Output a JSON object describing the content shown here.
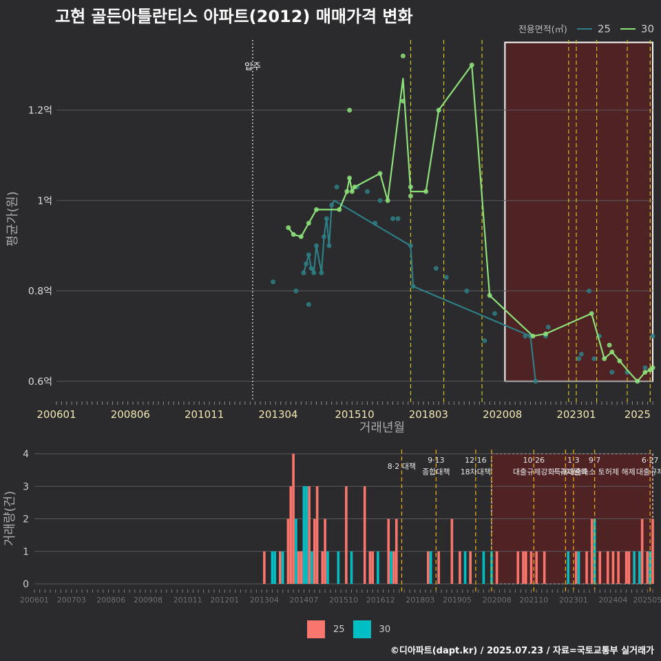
{
  "title": "고현 골든아틀란티스 아파트(2012) 매매가격 변화",
  "legend": {
    "title": "전용면적(㎡)",
    "items": [
      {
        "label": "25",
        "color": "#2e7f85"
      },
      {
        "label": "30",
        "color": "#8ee27a"
      }
    ]
  },
  "bar_legend": {
    "items": [
      {
        "label": "25",
        "color": "#f8766d"
      },
      {
        "label": "30",
        "color": "#00bfc4"
      }
    ]
  },
  "credit": "©디아파트(dapt.kr) / 2025.07.23 / 자료=국토교통부 실거래가",
  "chart_data": [
    {
      "type": "line",
      "xlabel": "거래년월",
      "ylabel": "평균가(원)",
      "x_ticks": [
        "200601",
        "200806",
        "201011",
        "201304",
        "201510",
        "201803",
        "202008",
        "202301",
        "2025"
      ],
      "y_ticks": [
        0.6,
        0.8,
        1.0,
        1.2
      ],
      "y_tick_labels": [
        "0.6억",
        "0.8억",
        "1억",
        "1.2억"
      ],
      "xlim": [
        "2006-01",
        "2025-07"
      ],
      "ylim": [
        0.56,
        1.36
      ],
      "grid": true,
      "legend_position": "top-right",
      "annotations": [
        {
          "x": "2012-06",
          "label": "입주"
        }
      ],
      "event_lines": [
        "2017-08",
        "2018-09",
        "2019-12",
        "2022-10",
        "2023-01",
        "2023-09",
        "2024-09",
        "2025-06"
      ],
      "highlight_region": {
        "x_from": "2020-09",
        "x_to": "2025-07",
        "y_from": 0.6,
        "y_to": 1.35
      },
      "series": [
        {
          "name": "25",
          "line": [
            {
              "x": "2014-02",
              "y": 0.84
            },
            {
              "x": "2014-03",
              "y": 0.86
            },
            {
              "x": "2014-04",
              "y": 0.88
            },
            {
              "x": "2014-05",
              "y": 0.85
            },
            {
              "x": "2014-06",
              "y": 0.84
            },
            {
              "x": "2014-07",
              "y": 0.9
            },
            {
              "x": "2014-09",
              "y": 0.84
            },
            {
              "x": "2014-10",
              "y": 0.92
            },
            {
              "x": "2014-11",
              "y": 0.96
            },
            {
              "x": "2014-12",
              "y": 0.9
            },
            {
              "x": "2015-01",
              "y": 0.99
            },
            {
              "x": "2015-02",
              "y": 1.0
            },
            {
              "x": "2017-08",
              "y": 0.9
            },
            {
              "x": "2017-09",
              "y": 0.81
            },
            {
              "x": "2021-07",
              "y": 0.7
            },
            {
              "x": "2021-09",
              "y": 0.6
            }
          ],
          "points": [
            {
              "x": "2013-02",
              "y": 0.82
            },
            {
              "x": "2013-11",
              "y": 0.8
            },
            {
              "x": "2014-02",
              "y": 0.84
            },
            {
              "x": "2014-03",
              "y": 0.86
            },
            {
              "x": "2014-04",
              "y": 0.88
            },
            {
              "x": "2014-04",
              "y": 0.77
            },
            {
              "x": "2014-05",
              "y": 0.85
            },
            {
              "x": "2014-06",
              "y": 0.84
            },
            {
              "x": "2014-07",
              "y": 0.9
            },
            {
              "x": "2014-09",
              "y": 0.84
            },
            {
              "x": "2014-10",
              "y": 0.92
            },
            {
              "x": "2014-11",
              "y": 0.96
            },
            {
              "x": "2014-12",
              "y": 0.9
            },
            {
              "x": "2015-01",
              "y": 0.99
            },
            {
              "x": "2015-03",
              "y": 1.03
            },
            {
              "x": "2015-11",
              "y": 1.03
            },
            {
              "x": "2016-03",
              "y": 1.02
            },
            {
              "x": "2016-06",
              "y": 0.95
            },
            {
              "x": "2016-08",
              "y": 1.0
            },
            {
              "x": "2017-01",
              "y": 0.96
            },
            {
              "x": "2017-03",
              "y": 0.96
            },
            {
              "x": "2017-08",
              "y": 0.9
            },
            {
              "x": "2017-09",
              "y": 0.81
            },
            {
              "x": "2018-06",
              "y": 0.85
            },
            {
              "x": "2018-10",
              "y": 0.83
            },
            {
              "x": "2019-06",
              "y": 0.8
            },
            {
              "x": "2020-01",
              "y": 0.69
            },
            {
              "x": "2020-05",
              "y": 0.75
            },
            {
              "x": "2021-05",
              "y": 0.7
            },
            {
              "x": "2021-07",
              "y": 0.7
            },
            {
              "x": "2021-09",
              "y": 0.6
            },
            {
              "x": "2022-01",
              "y": 0.7
            },
            {
              "x": "2022-02",
              "y": 0.72
            },
            {
              "x": "2023-02",
              "y": 0.65
            },
            {
              "x": "2023-03",
              "y": 0.66
            },
            {
              "x": "2023-06",
              "y": 0.8
            },
            {
              "x": "2023-08",
              "y": 0.65
            },
            {
              "x": "2023-10",
              "y": 0.7
            },
            {
              "x": "2024-03",
              "y": 0.62
            },
            {
              "x": "2024-09",
              "y": 0.62
            },
            {
              "x": "2025-04",
              "y": 0.63
            },
            {
              "x": "2025-07",
              "y": 0.7
            }
          ]
        },
        {
          "name": "30",
          "line": [
            {
              "x": "2013-08",
              "y": 0.94
            },
            {
              "x": "2013-10",
              "y": 0.925
            },
            {
              "x": "2014-01",
              "y": 0.92
            },
            {
              "x": "2014-04",
              "y": 0.95
            },
            {
              "x": "2014-07",
              "y": 0.98
            },
            {
              "x": "2015-04",
              "y": 0.98
            },
            {
              "x": "2015-07",
              "y": 1.02
            },
            {
              "x": "2015-08",
              "y": 1.05
            },
            {
              "x": "2015-09",
              "y": 1.02
            },
            {
              "x": "2015-10",
              "y": 1.03
            },
            {
              "x": "2016-08",
              "y": 1.06
            },
            {
              "x": "2016-11",
              "y": 1.0
            },
            {
              "x": "2017-05",
              "y": 1.27
            },
            {
              "x": "2017-08",
              "y": 1.02
            },
            {
              "x": "2018-02",
              "y": 1.02
            },
            {
              "x": "2018-07",
              "y": 1.2
            },
            {
              "x": "2019-08",
              "y": 1.3
            },
            {
              "x": "2020-03",
              "y": 0.79
            },
            {
              "x": "2021-08",
              "y": 0.7
            },
            {
              "x": "2022-01",
              "y": 0.705
            },
            {
              "x": "2023-07",
              "y": 0.75
            },
            {
              "x": "2023-12",
              "y": 0.65
            },
            {
              "x": "2024-03",
              "y": 0.665
            },
            {
              "x": "2024-06",
              "y": 0.645
            },
            {
              "x": "2024-09",
              "y": 0.625
            },
            {
              "x": "2025-01",
              "y": 0.6
            },
            {
              "x": "2025-04",
              "y": 0.62
            },
            {
              "x": "2025-06",
              "y": 0.625
            },
            {
              "x": "2025-07",
              "y": 0.63
            }
          ],
          "points": [
            {
              "x": "2013-08",
              "y": 0.94
            },
            {
              "x": "2013-10",
              "y": 0.925
            },
            {
              "x": "2014-01",
              "y": 0.92
            },
            {
              "x": "2014-04",
              "y": 0.95
            },
            {
              "x": "2014-07",
              "y": 0.98
            },
            {
              "x": "2015-04",
              "y": 0.98
            },
            {
              "x": "2015-07",
              "y": 1.02
            },
            {
              "x": "2015-08",
              "y": 1.05
            },
            {
              "x": "2015-08",
              "y": 1.2
            },
            {
              "x": "2015-09",
              "y": 1.02
            },
            {
              "x": "2015-10",
              "y": 1.03
            },
            {
              "x": "2016-08",
              "y": 1.06
            },
            {
              "x": "2016-11",
              "y": 1.0
            },
            {
              "x": "2017-05",
              "y": 1.32
            },
            {
              "x": "2017-05",
              "y": 1.22
            },
            {
              "x": "2017-08",
              "y": 1.03
            },
            {
              "x": "2017-08",
              "y": 1.01
            },
            {
              "x": "2018-02",
              "y": 1.02
            },
            {
              "x": "2018-07",
              "y": 1.2
            },
            {
              "x": "2019-08",
              "y": 1.3
            },
            {
              "x": "2020-03",
              "y": 0.79
            },
            {
              "x": "2021-08",
              "y": 0.7
            },
            {
              "x": "2022-01",
              "y": 0.705
            },
            {
              "x": "2023-07",
              "y": 0.75
            },
            {
              "x": "2023-12",
              "y": 0.65
            },
            {
              "x": "2024-02",
              "y": 0.68
            },
            {
              "x": "2024-03",
              "y": 0.665
            },
            {
              "x": "2024-06",
              "y": 0.645
            },
            {
              "x": "2025-01",
              "y": 0.6
            },
            {
              "x": "2025-04",
              "y": 0.62
            },
            {
              "x": "2025-06",
              "y": 0.625
            },
            {
              "x": "2025-07",
              "y": 0.63
            }
          ]
        }
      ]
    },
    {
      "type": "bar",
      "ylabel": "거래량(건)",
      "x_ticks": [
        "200601",
        "200703",
        "200806",
        "200908",
        "201011",
        "201201",
        "201304",
        "201407",
        "201510",
        "201612",
        "201803",
        "201905",
        "202008",
        "202110",
        "202301",
        "202404",
        "202505"
      ],
      "y_ticks": [
        0,
        1,
        2,
        3,
        4
      ],
      "ylim": [
        0,
        4
      ],
      "grid": true,
      "legend_position": "bottom",
      "event_markers": [
        {
          "x": "2017-08",
          "labels": [
            "8·2 대책"
          ]
        },
        {
          "x": "2018-09",
          "labels": [
            "9·13",
            "종합대책"
          ]
        },
        {
          "x": "2019-12",
          "labels": [
            "12·16",
            "18차대책"
          ]
        },
        {
          "x": "2020-06",
          "labels": []
        },
        {
          "x": "2021-10",
          "labels": [
            "10·26",
            "대출규제강화"
          ]
        },
        {
          "x": "2022-10",
          "labels": []
        },
        {
          "x": "2023-01",
          "labels": [
            "1·3",
            "규제완화"
          ]
        },
        {
          "x": "2023-09",
          "labels": [
            "9·7",
            "특례대출축소 토허제 해제"
          ]
        },
        {
          "x": "2025-06",
          "labels": [
            "6·27",
            "대출규제"
          ]
        }
      ],
      "highlight_region": {
        "x_from": "2020-06",
        "x_to": "2025-07"
      },
      "series": [
        {
          "name": "25",
          "bars": [
            {
              "x": "2013-04",
              "y": 1
            },
            {
              "x": "2013-10",
              "y": 1
            },
            {
              "x": "2014-01",
              "y": 2
            },
            {
              "x": "2014-02",
              "y": 3
            },
            {
              "x": "2014-03",
              "y": 4
            },
            {
              "x": "2014-04",
              "y": 1
            },
            {
              "x": "2014-05",
              "y": 1
            },
            {
              "x": "2014-06",
              "y": 1
            },
            {
              "x": "2014-07",
              "y": 2
            },
            {
              "x": "2014-09",
              "y": 3
            },
            {
              "x": "2014-11",
              "y": 2
            },
            {
              "x": "2014-12",
              "y": 3
            },
            {
              "x": "2015-02",
              "y": 1
            },
            {
              "x": "2015-03",
              "y": 2
            },
            {
              "x": "2015-11",
              "y": 3
            },
            {
              "x": "2016-06",
              "y": 3
            },
            {
              "x": "2016-08",
              "y": 1
            },
            {
              "x": "2016-09",
              "y": 1
            },
            {
              "x": "2017-03",
              "y": 2
            },
            {
              "x": "2017-05",
              "y": 1
            },
            {
              "x": "2017-06",
              "y": 2
            },
            {
              "x": "2018-06",
              "y": 1
            },
            {
              "x": "2018-10",
              "y": 1
            },
            {
              "x": "2019-03",
              "y": 2
            },
            {
              "x": "2019-06",
              "y": 1
            },
            {
              "x": "2019-10",
              "y": 1
            },
            {
              "x": "2020-08",
              "y": 1
            },
            {
              "x": "2021-04",
              "y": 1
            },
            {
              "x": "2021-06",
              "y": 1
            },
            {
              "x": "2021-07",
              "y": 1
            },
            {
              "x": "2021-09",
              "y": 1
            },
            {
              "x": "2021-11",
              "y": 1
            },
            {
              "x": "2022-02",
              "y": 1
            },
            {
              "x": "2023-02",
              "y": 1
            },
            {
              "x": "2023-06",
              "y": 1
            },
            {
              "x": "2023-08",
              "y": 2
            },
            {
              "x": "2023-11",
              "y": 1
            },
            {
              "x": "2024-02",
              "y": 1
            },
            {
              "x": "2024-04",
              "y": 1
            },
            {
              "x": "2024-06",
              "y": 1
            },
            {
              "x": "2024-09",
              "y": 1
            },
            {
              "x": "2024-10",
              "y": 1
            },
            {
              "x": "2025-03",
              "y": 2
            },
            {
              "x": "2025-05",
              "y": 1
            },
            {
              "x": "2025-07",
              "y": 2
            }
          ]
        },
        {
          "name": "30",
          "bars": [
            {
              "x": "2013-07",
              "y": 1
            },
            {
              "x": "2013-08",
              "y": 1
            },
            {
              "x": "2013-11",
              "y": 1
            },
            {
              "x": "2014-04",
              "y": 2
            },
            {
              "x": "2014-07",
              "y": 3
            },
            {
              "x": "2014-08",
              "y": 3
            },
            {
              "x": "2014-10",
              "y": 1
            },
            {
              "x": "2015-04",
              "y": 1
            },
            {
              "x": "2015-08",
              "y": 1
            },
            {
              "x": "2016-01",
              "y": 1
            },
            {
              "x": "2016-11",
              "y": 1
            },
            {
              "x": "2017-04",
              "y": 1
            },
            {
              "x": "2018-07",
              "y": 1
            },
            {
              "x": "2019-08",
              "y": 1
            },
            {
              "x": "2020-03",
              "y": 1
            },
            {
              "x": "2020-06",
              "y": 1
            },
            {
              "x": "2022-11",
              "y": 1
            },
            {
              "x": "2023-03",
              "y": 1
            },
            {
              "x": "2023-09",
              "y": 2
            },
            {
              "x": "2024-12",
              "y": 1
            },
            {
              "x": "2025-02",
              "y": 1
            },
            {
              "x": "2025-06",
              "y": 1
            }
          ]
        }
      ]
    }
  ]
}
